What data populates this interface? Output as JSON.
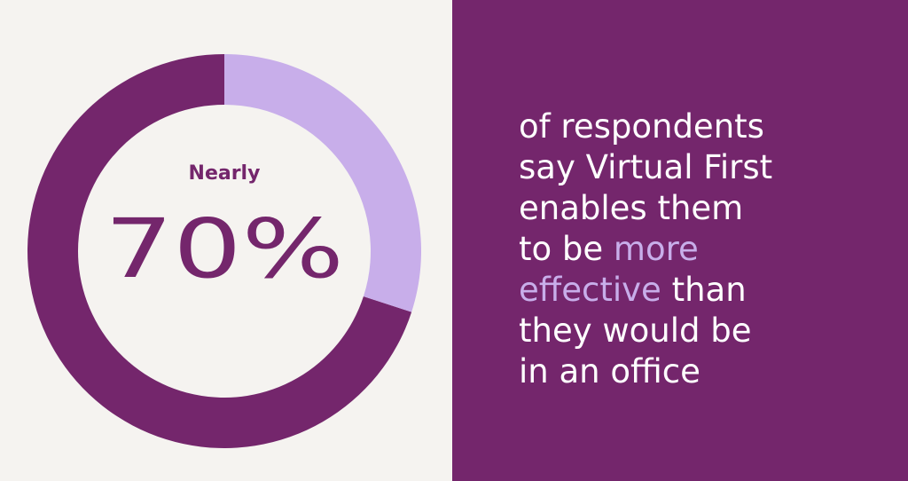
{
  "chart_data": {
    "type": "donut",
    "annotation": "Nearly",
    "values": [
      70,
      30
    ],
    "value_labels": [
      "70%",
      null
    ],
    "colors": [
      "#74266c",
      "#c8aeea"
    ],
    "start": "top",
    "direction": "counterclockwise"
  },
  "caption": {
    "color": "#ffffff",
    "highlight_color": "#c8aeea",
    "lines": [
      [
        {
          "text": "of respondents"
        }
      ],
      [
        {
          "text": "say Virtual First"
        }
      ],
      [
        {
          "text": "enables them"
        }
      ],
      [
        {
          "text": "to be "
        },
        {
          "text": "more",
          "highlight": true
        }
      ],
      [
        {
          "text": "effective",
          "highlight": true
        },
        {
          "text": " than"
        }
      ],
      [
        {
          "text": "they would be"
        }
      ],
      [
        {
          "text": "in an office"
        }
      ]
    ]
  }
}
